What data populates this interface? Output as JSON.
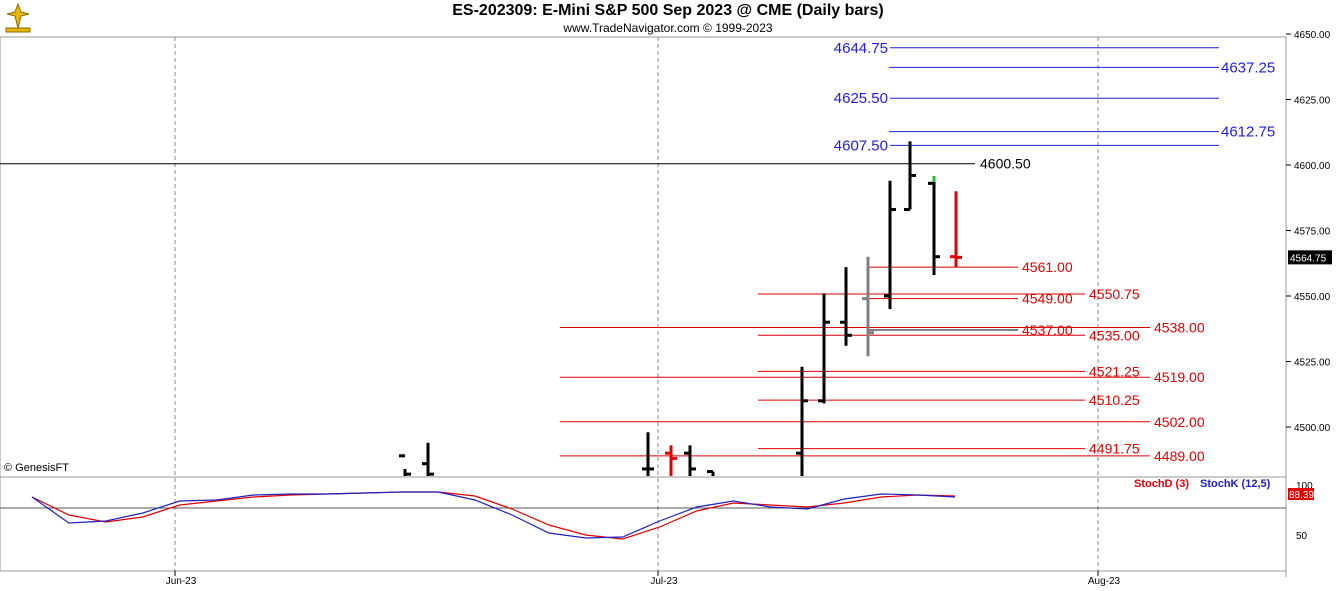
{
  "title": "ES-202309:  E-Mini S&P 500 Sep 2023 @ CME  (Daily bars)",
  "subtitle": "www.TradeNavigator.com © 1999-2023",
  "credit": "© GenesisFT",
  "colors": {
    "blue": "#1f1fd6",
    "red": "#e00000",
    "black": "#000000",
    "gray": "#808080",
    "green": "#22c022"
  },
  "chart_data": {
    "type": "ohlc",
    "price_ticks": [
      "4650.00",
      "4625.00",
      "4600.00",
      "4575.00",
      "4550.00",
      "4525.00",
      "4500.00"
    ],
    "price_range": [
      4480,
      4655
    ],
    "last_price": "4564.75",
    "x_ticks": [
      "Jun-23",
      "Jul-23",
      "Aug-23"
    ],
    "horizontal_line_label": "4600.50",
    "blue_levels": [
      {
        "value": "4644.75",
        "side": "left"
      },
      {
        "value": "4637.25",
        "side": "right"
      },
      {
        "value": "4625.50",
        "side": "left"
      },
      {
        "value": "4612.75",
        "side": "right"
      },
      {
        "value": "4607.50",
        "side": "left"
      }
    ],
    "red_levels": [
      {
        "value": "4561.00",
        "color": "red"
      },
      {
        "value": "4549.00",
        "color": "red"
      },
      {
        "value": "4550.75",
        "color": "red"
      },
      {
        "value": "4537.00",
        "color": "black"
      },
      {
        "value": "4535.00",
        "color": "red"
      },
      {
        "value": "4538.00",
        "color": "red"
      },
      {
        "value": "4521.25",
        "color": "red"
      },
      {
        "value": "4519.00",
        "color": "red"
      },
      {
        "value": "4510.25",
        "color": "red"
      },
      {
        "value": "4502.00",
        "color": "red"
      },
      {
        "value": "4491.75",
        "color": "red"
      },
      {
        "value": "4489.00",
        "color": "red"
      }
    ],
    "bars": [
      {
        "o": 4489,
        "h": 4484,
        "l": 4480,
        "c": 4482,
        "color": "black"
      },
      {
        "o": 4486,
        "h": 4494,
        "l": 4480,
        "c": 4482,
        "color": "black"
      },
      {
        "o": 4484,
        "h": 4498,
        "l": 4480,
        "c": 4484,
        "color": "black"
      },
      {
        "o": 4490,
        "h": 4493,
        "l": 4480,
        "c": 4488,
        "color": "red"
      },
      {
        "o": 4490,
        "h": 4493,
        "l": 4480,
        "c": 4484,
        "color": "black"
      },
      {
        "o": 4483,
        "h": 4483,
        "l": 4480,
        "c": 4480,
        "color": "black"
      },
      {
        "o": 4490,
        "h": 4523,
        "l": 4480,
        "c": 4510,
        "color": "black"
      },
      {
        "o": 4510,
        "h": 4551,
        "l": 4509,
        "c": 4540,
        "color": "black"
      },
      {
        "o": 4540,
        "h": 4561,
        "l": 4531,
        "c": 4535,
        "color": "black"
      },
      {
        "o": 4549,
        "h": 4565,
        "l": 4527,
        "c": 4536,
        "color": "gray"
      },
      {
        "o": 4550,
        "h": 4594,
        "l": 4545,
        "c": 4583,
        "color": "black"
      },
      {
        "o": 4583,
        "h": 4609,
        "l": 4583,
        "c": 4596,
        "color": "black"
      },
      {
        "o": 4593,
        "h": 4595,
        "l": 4558,
        "c": 4565,
        "color": "black"
      },
      {
        "o": 4565,
        "h": 4590,
        "l": 4561,
        "c": 4564.75,
        "color": "red"
      }
    ],
    "stoch_ticks": [
      "100",
      "50"
    ],
    "stoch_current": "88.39",
    "stoch_d_label": "StochD (3)",
    "stoch_k_label": "StochK (12,5)",
    "stoch_k": [
      88,
      62,
      64,
      72,
      84,
      85,
      90,
      91,
      91,
      92,
      93,
      93,
      85,
      70,
      52,
      47,
      48,
      64,
      78,
      84,
      78,
      76,
      86,
      91,
      90,
      88
    ],
    "stoch_d": [
      88,
      70,
      63,
      68,
      80,
      84,
      88,
      90,
      91,
      92,
      93,
      93,
      89,
      76,
      60,
      50,
      46,
      58,
      74,
      82,
      80,
      78,
      82,
      88,
      90,
      89
    ]
  }
}
